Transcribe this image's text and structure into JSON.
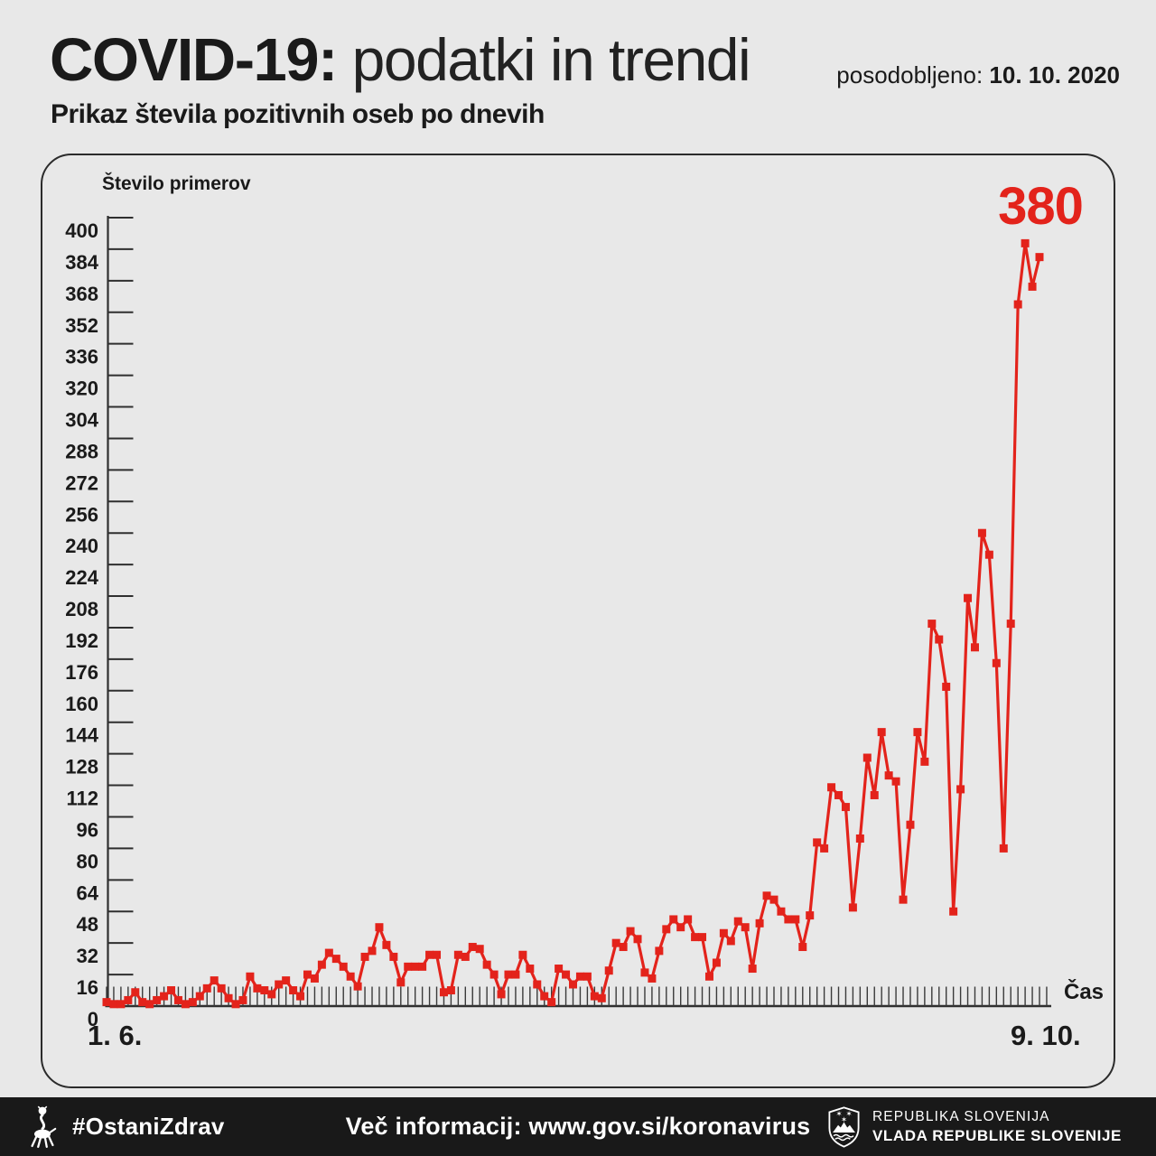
{
  "header": {
    "title_strong": "COVID-19:",
    "title_light": " podatki in trendi",
    "updated_label": "posodobljeno: ",
    "updated_date": "10. 10. 2020",
    "subtitle": "Prikaz števila pozitivnih oseb po dnevih"
  },
  "chart_data": {
    "type": "line",
    "title": "Prikaz števila pozitivnih oseb po dnevih",
    "ylabel": "Število primerov",
    "xlabel": "Čas",
    "x_start_label": "1. 6.",
    "x_end_label": "9. 10.",
    "x_range": "dnevno od 1. 6. do 9. 10.",
    "peak_label": "380",
    "last_value": 380,
    "ylim": [
      0,
      400
    ],
    "ytick_step": 16,
    "grid": false,
    "legend": false,
    "marker": "square",
    "series_color": "#e3231b",
    "values": [
      2,
      1,
      1,
      3,
      7,
      2,
      1,
      3,
      5,
      8,
      3,
      1,
      2,
      5,
      9,
      13,
      9,
      4,
      1,
      3,
      15,
      9,
      8,
      6,
      11,
      13,
      8,
      5,
      16,
      14,
      21,
      27,
      24,
      20,
      15,
      10,
      25,
      28,
      40,
      31,
      25,
      12,
      20,
      20,
      20,
      26,
      26,
      7,
      8,
      26,
      25,
      30,
      29,
      21,
      16,
      6,
      16,
      16,
      26,
      19,
      11,
      5,
      2,
      19,
      16,
      11,
      15,
      15,
      5,
      4,
      18,
      32,
      30,
      38,
      34,
      17,
      14,
      28,
      39,
      44,
      40,
      44,
      35,
      35,
      15,
      22,
      37,
      33,
      43,
      40,
      19,
      42,
      56,
      54,
      48,
      44,
      44,
      30,
      46,
      83,
      80,
      111,
      107,
      101,
      50,
      85,
      126,
      107,
      139,
      117,
      114,
      54,
      92,
      139,
      124,
      194,
      186,
      162,
      48,
      110,
      207,
      182,
      240,
      229,
      174,
      80,
      194,
      356,
      387,
      365,
      380
    ]
  },
  "footer": {
    "hashtag": "#OstaniZdrav",
    "info": "Več informacij: www.gov.si/koronavirus",
    "gov_line1": "REPUBLIKA SLOVENIJA",
    "gov_line2": "VLADA REPUBLIKE SLOVENIJE"
  },
  "colors": {
    "accent_red": "#e3231b",
    "page_bg": "#e8e8e8",
    "axis": "#2f2f2f",
    "footer_bg": "#191919",
    "text": "#1a1a1a"
  }
}
